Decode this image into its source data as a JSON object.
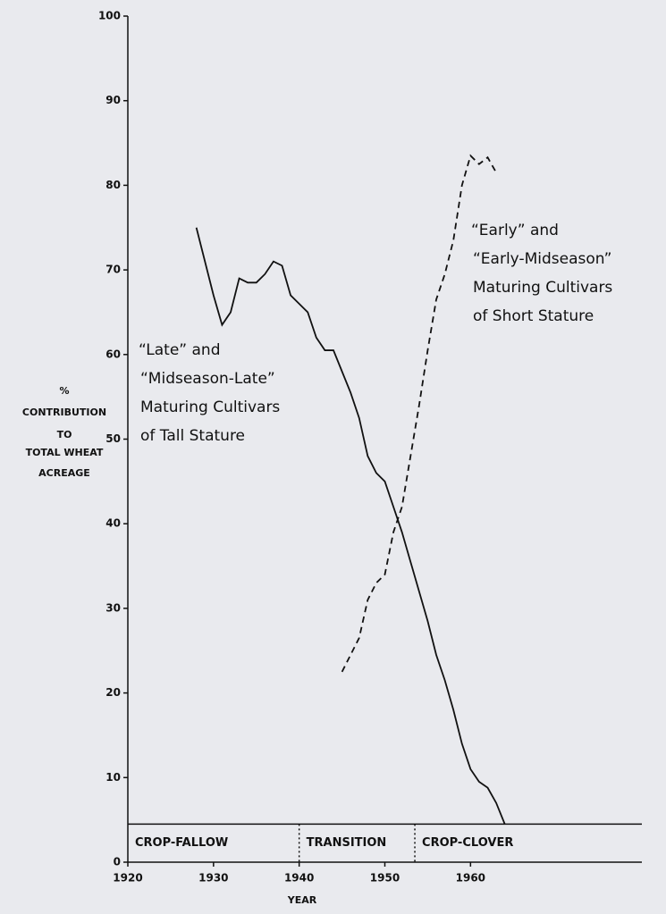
{
  "chart_data": {
    "type": "line",
    "xlabel": "YEAR",
    "ylabel_lines": [
      "%",
      "CONTRIBUTION",
      "TO",
      "TOTAL WHEAT",
      "ACREAGE"
    ],
    "xlim": [
      1920,
      1980
    ],
    "xticks": [
      1920,
      1930,
      1940,
      1950,
      1960
    ],
    "ylim": [
      0,
      100
    ],
    "yticks": [
      0,
      10,
      20,
      30,
      40,
      50,
      60,
      70,
      80,
      90,
      100
    ],
    "series": [
      {
        "color": "#111111",
        "dash": "solid",
        "x": [
          1928,
          1930,
          1931,
          1932,
          1933,
          1934,
          1935,
          1936,
          1937,
          1938,
          1939,
          1940,
          1941,
          1942,
          1943,
          1944,
          1945,
          1946,
          1947,
          1948,
          1949,
          1950,
          1951,
          1952,
          1953,
          1954,
          1955,
          1956,
          1957,
          1958,
          1959,
          1960,
          1961,
          1962,
          1963,
          1964
        ],
        "values": [
          75,
          67,
          63.5,
          65,
          69,
          68.5,
          68.5,
          69.5,
          71,
          70.5,
          67,
          66,
          65,
          62,
          60.5,
          60.5,
          58,
          55.5,
          52.5,
          48,
          46,
          45,
          42,
          39,
          35.5,
          32,
          28.5,
          24.5,
          21.5,
          18,
          14,
          11,
          9.5,
          8.8,
          7,
          4.5
        ]
      },
      {
        "color": "#111111",
        "dash": "dashed",
        "x": [
          1945,
          1946,
          1947,
          1948,
          1949,
          1950,
          1951,
          1952,
          1953,
          1954,
          1955,
          1956,
          1957,
          1958,
          1959,
          1960,
          1961,
          1962,
          1963
        ],
        "values": [
          22.5,
          24.5,
          26.5,
          31,
          33,
          34,
          39,
          42,
          48,
          54,
          60.5,
          66.5,
          69.5,
          73.5,
          80,
          83.5,
          82.5,
          83.3,
          81.5
        ]
      }
    ],
    "annotations": [
      {
        "lines": [
          "“Late” and",
          "“Midseason-Late”",
          "Maturing Cultivars",
          "of Tall Stature"
        ]
      },
      {
        "lines": [
          "“Early” and",
          "“Early-Midseason”",
          "Maturing Cultivars",
          "of Short Stature"
        ]
      }
    ],
    "band_top": 4.5,
    "periods": [
      {
        "label": "CROP-FALLOW",
        "start": 1920,
        "end": 1940
      },
      {
        "label": "TRANSITION",
        "start": 1940,
        "end": 1953.5
      },
      {
        "label": "CROP-CLOVER",
        "start": 1953.5,
        "end": 1980
      }
    ]
  }
}
